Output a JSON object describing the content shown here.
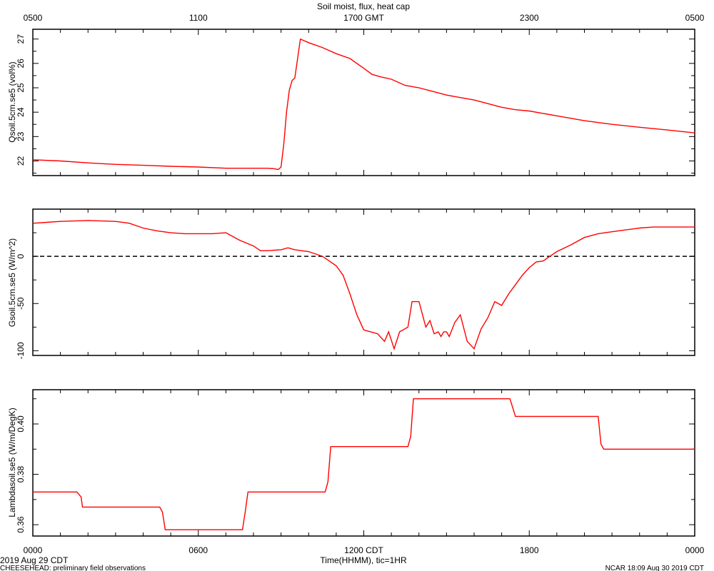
{
  "title": "Soil moist, flux, heat cap",
  "top_axis": {
    "labels": [
      "0500",
      "1100",
      "1700 GMT",
      "2300",
      "0500"
    ],
    "hours": [
      0,
      6,
      12,
      18,
      24
    ]
  },
  "bottom_axis": {
    "labels": [
      "0000",
      "0600",
      "1200 CDT",
      "1800",
      "0000"
    ],
    "hours": [
      0,
      6,
      12,
      18,
      24
    ],
    "title": "Time(HHMM), tic=1HR"
  },
  "footer": {
    "left_date": "2019 Aug 29 CDT",
    "left_note": "CHEESEHEAD: preliminary field observations",
    "right_note": "NCAR 18:09 Aug 30 2019 CDT"
  },
  "colors": {
    "series": "#ff0000",
    "axes": "#000000",
    "zero_line": "#000000"
  },
  "chart_data": [
    {
      "type": "line",
      "ylabel": "Qsoil.5cm.se5 (vol%)",
      "xlim": [
        0,
        24
      ],
      "ylim": [
        21.4,
        27.4
      ],
      "yticks": [
        22,
        23,
        24,
        25,
        26,
        27
      ],
      "grid": false,
      "series": [
        {
          "x": [
            0,
            1,
            2,
            3,
            4,
            5,
            6,
            7,
            8,
            8.5,
            8.75,
            8.9,
            9.0,
            9.1,
            9.2,
            9.3,
            9.4,
            9.5,
            9.6,
            9.7,
            10,
            10.5,
            11,
            11.5,
            12,
            12.3,
            12.6,
            13,
            13.5,
            14,
            14.5,
            15,
            15.5,
            16,
            16.5,
            17,
            17.5,
            18,
            18.5,
            19,
            19.5,
            20,
            21,
            22,
            23,
            24
          ],
          "y": [
            22.05,
            22.0,
            21.92,
            21.86,
            21.82,
            21.78,
            21.75,
            21.7,
            21.7,
            21.7,
            21.68,
            21.65,
            21.75,
            22.7,
            24.0,
            24.9,
            25.3,
            25.4,
            26.2,
            27.0,
            26.85,
            26.65,
            26.4,
            26.2,
            25.8,
            25.55,
            25.45,
            25.35,
            25.1,
            25.0,
            24.85,
            24.7,
            24.6,
            24.5,
            24.35,
            24.2,
            24.1,
            24.05,
            23.95,
            23.85,
            23.75,
            23.65,
            23.5,
            23.38,
            23.27,
            23.15
          ]
        }
      ]
    },
    {
      "type": "line",
      "ylabel": "Gsoil.5cm.se5 (W/m^2)",
      "xlim": [
        0,
        24
      ],
      "ylim": [
        -105,
        50
      ],
      "yticks": [
        0,
        -50,
        -100
      ],
      "reference_line": 0,
      "grid": false,
      "series": [
        {
          "x": [
            0,
            0.5,
            1,
            2,
            3,
            3.5,
            4,
            4.5,
            5,
            5.5,
            6,
            6.5,
            7,
            7.5,
            8,
            8.25,
            8.5,
            9,
            9.25,
            9.5,
            10,
            10.5,
            11,
            11.25,
            11.5,
            11.75,
            12,
            12.25,
            12.5,
            12.75,
            12.9,
            13.1,
            13.3,
            13.6,
            13.75,
            14,
            14.25,
            14.4,
            14.55,
            14.7,
            14.8,
            14.9,
            15.0,
            15.1,
            15.3,
            15.5,
            15.75,
            16,
            16.25,
            16.5,
            16.75,
            17,
            17.25,
            17.5,
            17.75,
            18,
            18.25,
            18.5,
            18.75,
            19,
            19.5,
            20,
            20.5,
            21,
            21.5,
            22,
            22.5,
            23,
            23.5,
            24
          ],
          "y": [
            35,
            36,
            37,
            38,
            37,
            35,
            30,
            27,
            25,
            24,
            24,
            24,
            25,
            17,
            11,
            6,
            6,
            7,
            9,
            7,
            5,
            0,
            -10,
            -20,
            -40,
            -62,
            -78,
            -80,
            -82,
            -90,
            -80,
            -98,
            -80,
            -75,
            -48,
            -48,
            -75,
            -68,
            -82,
            -80,
            -85,
            -80,
            -80,
            -85,
            -70,
            -62,
            -90,
            -98,
            -77,
            -65,
            -48,
            -52,
            -40,
            -30,
            -20,
            -12,
            -6,
            -5,
            0,
            5,
            12,
            20,
            24,
            26,
            28,
            30,
            31,
            31,
            31,
            31
          ]
        }
      ]
    },
    {
      "type": "line",
      "ylabel": "Lambdasoil.se5 (W/m/DegK)",
      "xlim": [
        0,
        24
      ],
      "ylim": [
        0.3555,
        0.4136
      ],
      "yticks": [
        0.36,
        0.38,
        0.4
      ],
      "grid": false,
      "series": [
        {
          "x": [
            0,
            1.6,
            1.75,
            1.8,
            4.6,
            4.7,
            4.8,
            7.6,
            7.7,
            7.8,
            10.6,
            10.7,
            10.8,
            13.6,
            13.7,
            13.8,
            17.3,
            17.5,
            20.5,
            20.6,
            20.7,
            24
          ],
          "y": [
            0.373,
            0.373,
            0.371,
            0.367,
            0.367,
            0.365,
            0.358,
            0.358,
            0.365,
            0.373,
            0.373,
            0.377,
            0.391,
            0.391,
            0.395,
            0.41,
            0.41,
            0.403,
            0.403,
            0.392,
            0.39,
            0.39
          ]
        }
      ]
    }
  ]
}
